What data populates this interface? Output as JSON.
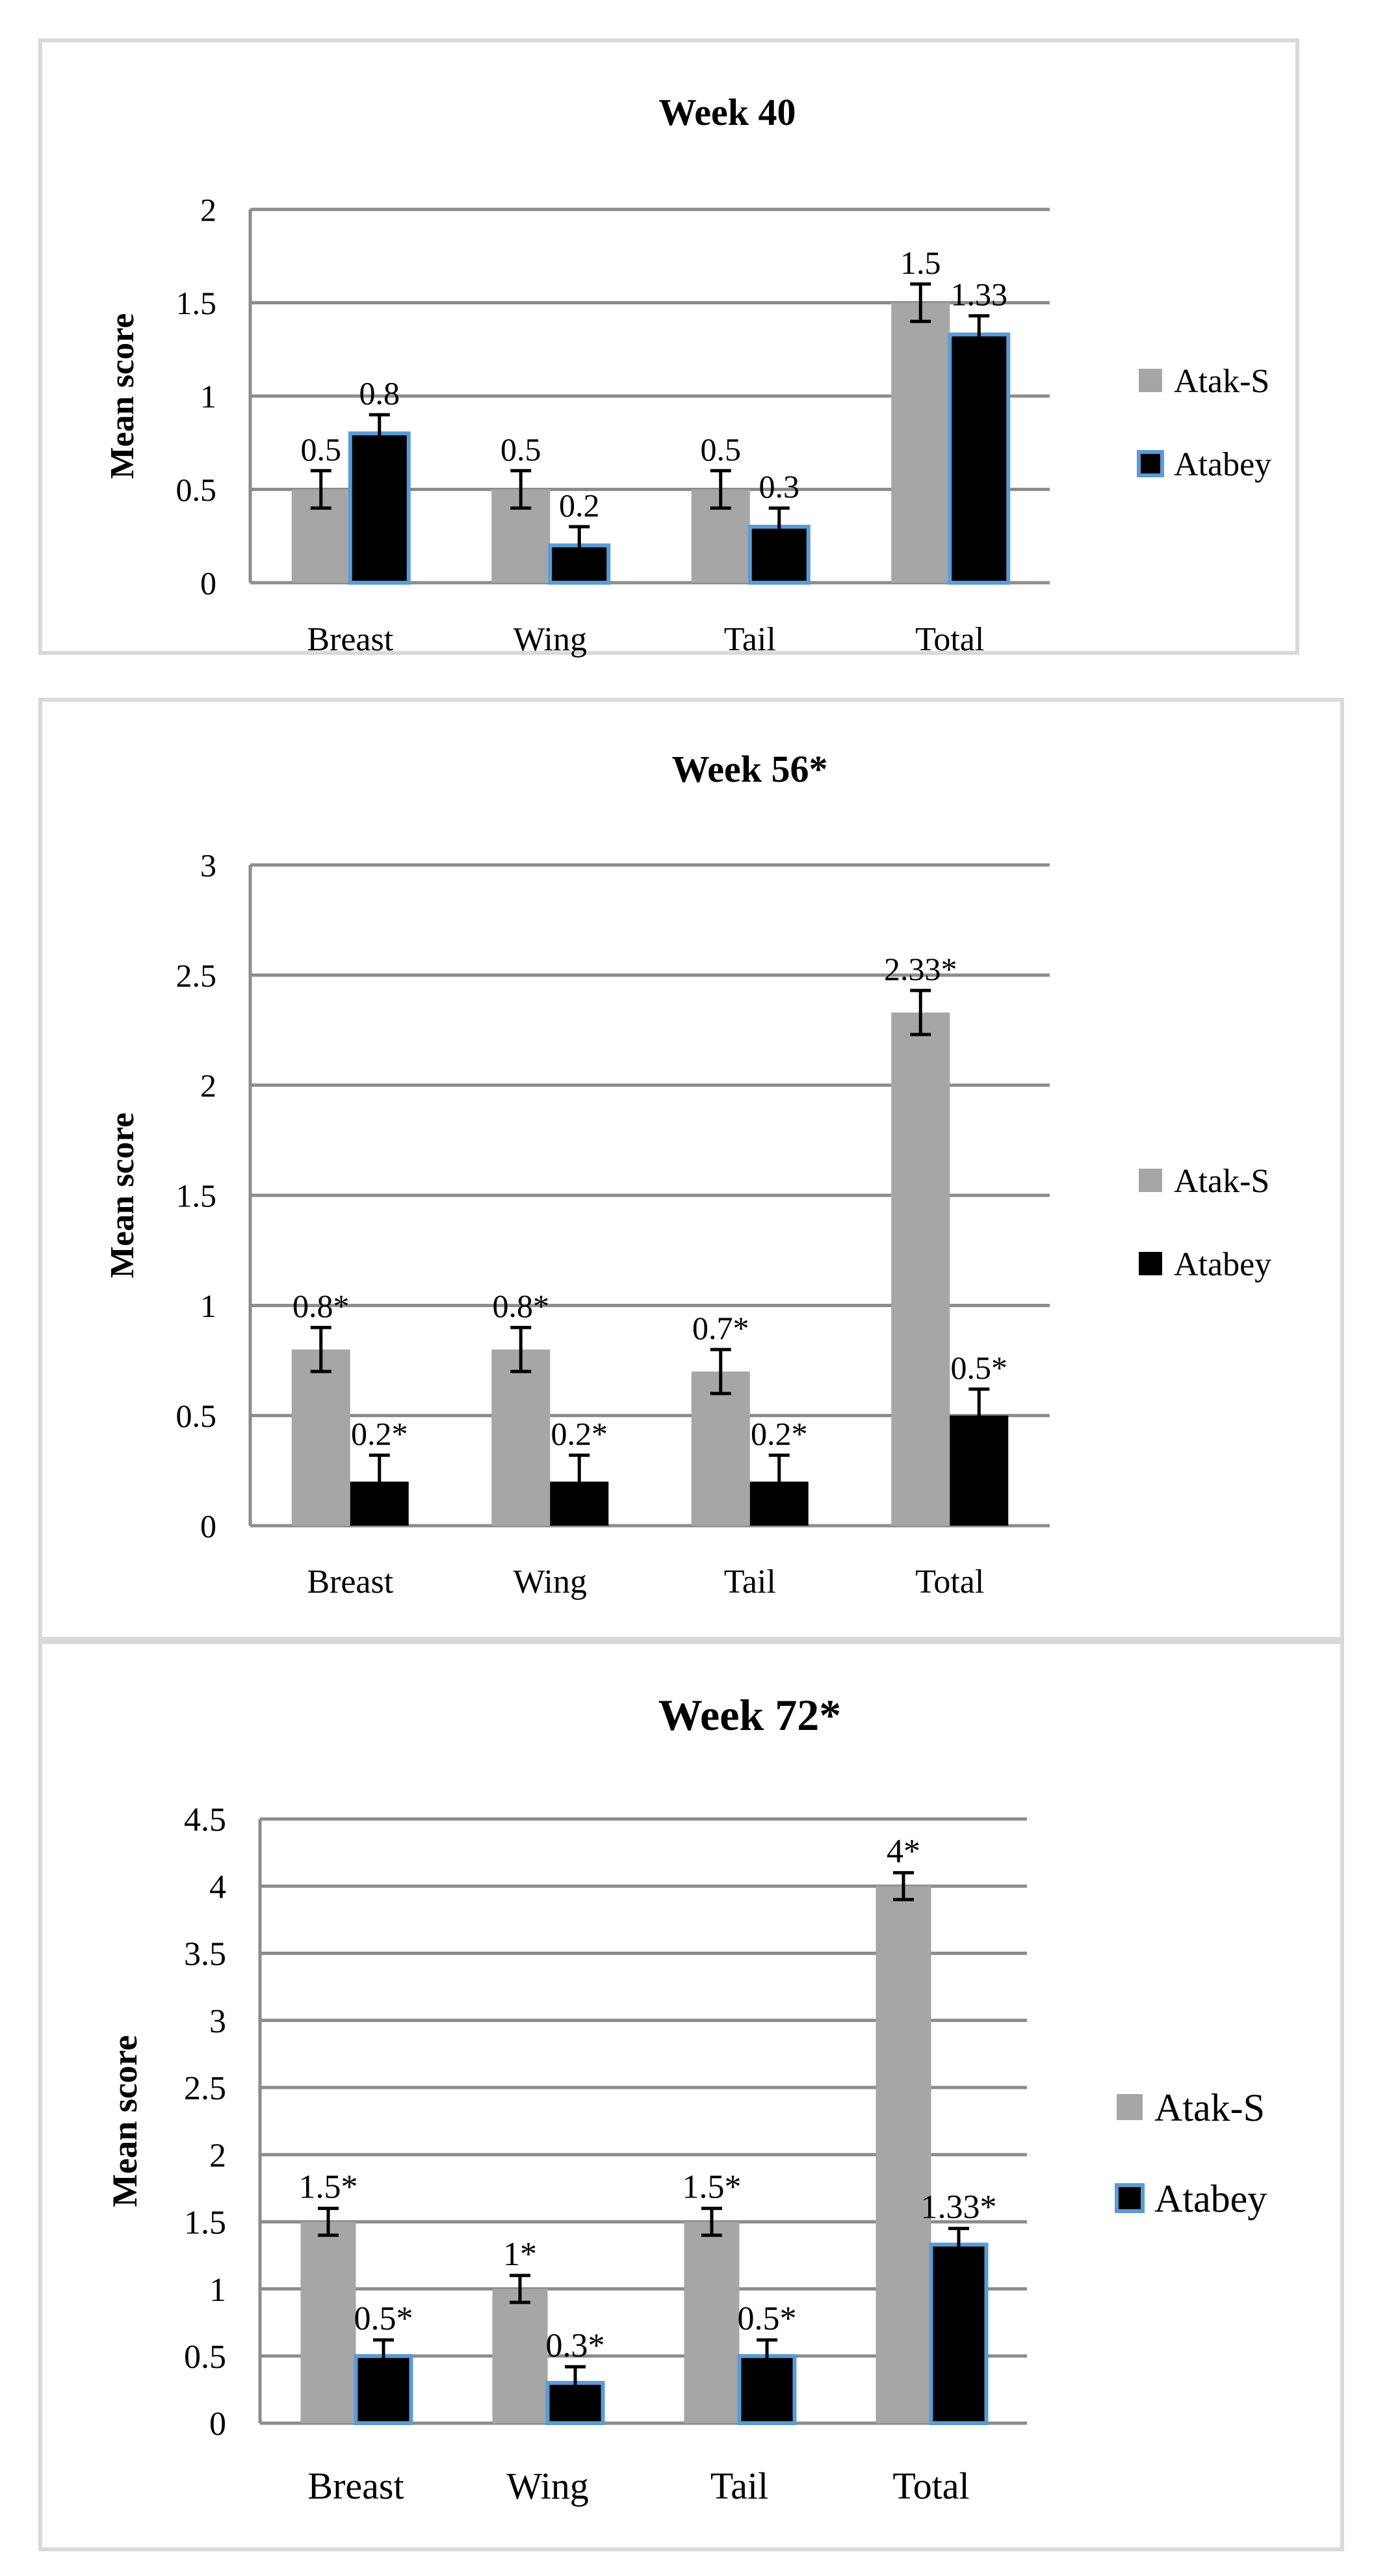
{
  "chart_data": [
    {
      "type": "bar",
      "title": "Week 40",
      "xlabel": "",
      "ylabel": "Mean score",
      "categories": [
        "Breast",
        "Wing",
        "Tail",
        "Total"
      ],
      "ylim": [
        0,
        2
      ],
      "yticks": [
        "0",
        "0.5",
        "1",
        "1.5",
        "2"
      ],
      "ytick_values": [
        0,
        0.5,
        1,
        1.5,
        2
      ],
      "grid": true,
      "legend_position": "right",
      "series": [
        {
          "name": "Atak-S",
          "color": "#a6a6a6",
          "outline": "none",
          "values": [
            0.5,
            0.5,
            0.5,
            1.5
          ],
          "errors": [
            0.1,
            0.1,
            0.1,
            0.1
          ],
          "labels": [
            "0.5",
            "0.5",
            "0.5",
            "1.5"
          ]
        },
        {
          "name": "Atabey",
          "color": "#000000",
          "outline": "#5b9bd5",
          "values": [
            0.8,
            0.2,
            0.3,
            1.33
          ],
          "errors": [
            0.1,
            0.1,
            0.1,
            0.1
          ],
          "labels": [
            "0.8",
            "0.2",
            "0.3",
            "1.33"
          ]
        }
      ]
    },
    {
      "type": "bar",
      "title": "Week 56*",
      "xlabel": "",
      "ylabel": "Mean score",
      "categories": [
        "Breast",
        "Wing",
        "Tail",
        "Total"
      ],
      "ylim": [
        0,
        3
      ],
      "yticks": [
        "0",
        "0.5",
        "1",
        "1.5",
        "2",
        "2.5",
        "3"
      ],
      "ytick_values": [
        0,
        0.5,
        1,
        1.5,
        2,
        2.5,
        3
      ],
      "grid": true,
      "legend_position": "right",
      "series": [
        {
          "name": "Atak-S",
          "color": "#a6a6a6",
          "outline": "none",
          "values": [
            0.8,
            0.8,
            0.7,
            2.33
          ],
          "errors": [
            0.1,
            0.1,
            0.1,
            0.1
          ],
          "labels": [
            "0.8*",
            "0.8*",
            "0.7*",
            "2.33*"
          ]
        },
        {
          "name": "Atabey",
          "color": "#000000",
          "outline": "none",
          "values": [
            0.2,
            0.2,
            0.2,
            0.5
          ],
          "errors": [
            0.12,
            0.12,
            0.12,
            0.12
          ],
          "labels": [
            "0.2*",
            "0.2*",
            "0.2*",
            "0.5*"
          ]
        }
      ]
    },
    {
      "type": "bar",
      "title": "Week 72*",
      "xlabel": "",
      "ylabel": "Mean score",
      "categories": [
        "Breast",
        "Wing",
        "Tail",
        "Total"
      ],
      "ylim": [
        0,
        4.5
      ],
      "yticks": [
        "0",
        "0.5",
        "1",
        "1.5",
        "2",
        "2.5",
        "3",
        "3.5",
        "4",
        "4.5"
      ],
      "ytick_values": [
        0,
        0.5,
        1,
        1.5,
        2,
        2.5,
        3,
        3.5,
        4,
        4.5
      ],
      "grid": true,
      "legend_position": "right",
      "series": [
        {
          "name": "Atak-S",
          "color": "#a6a6a6",
          "outline": "none",
          "values": [
            1.5,
            1.0,
            1.5,
            4.0
          ],
          "errors": [
            0.1,
            0.1,
            0.1,
            0.1
          ],
          "labels": [
            "1.5*",
            "1*",
            "1.5*",
            "4*"
          ]
        },
        {
          "name": "Atabey",
          "color": "#000000",
          "outline": "#5b9bd5",
          "values": [
            0.5,
            0.3,
            0.5,
            1.33
          ],
          "errors": [
            0.12,
            0.12,
            0.12,
            0.12
          ],
          "labels": [
            "0.5*",
            "0.3*",
            "0.5*",
            "1.33*"
          ]
        }
      ]
    }
  ]
}
